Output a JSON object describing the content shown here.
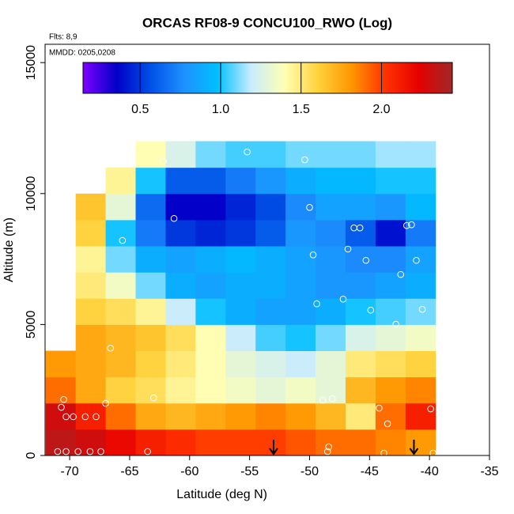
{
  "chart_data": {
    "type": "heatmap",
    "title": "ORCAS RF08-9 CONCU100_RWO (Log)",
    "subtitle": "Flts: 8,9",
    "annotation": "MMDD: 0205,0208",
    "x_label": "Latitude (deg N)",
    "y_label": "Altitude (m)",
    "xlim": [
      -72.05,
      -35
    ],
    "ylim": [
      0,
      15700
    ],
    "xticks": [
      -70,
      -65,
      -60,
      -55,
      -50,
      -45,
      -40,
      -35
    ],
    "yticks": [
      0,
      5000,
      10000,
      15000
    ],
    "x_edges": [
      -72,
      -69.5,
      -67,
      -64.5,
      -62,
      -59.5,
      -57,
      -54.5,
      -52,
      -49.5,
      -47,
      -44.5,
      -42,
      -39.5,
      -37
    ],
    "y_edges": [
      0,
      1000,
      2000,
      3000,
      4000,
      5000,
      6000,
      7000,
      8000,
      9000,
      10000,
      11000,
      12000
    ],
    "z": [
      [
        2.35,
        2.3,
        2.2,
        2.1,
        2.05,
        2.0,
        2.0,
        2.0,
        1.95,
        1.9,
        1.9,
        1.85,
        1.8,
        null
      ],
      [
        2.3,
        2.1,
        1.9,
        1.75,
        1.7,
        1.75,
        1.8,
        1.85,
        1.8,
        1.7,
        1.5,
        1.9,
        2.1,
        null
      ],
      [
        1.9,
        1.75,
        1.6,
        1.55,
        1.45,
        1.4,
        1.35,
        1.3,
        1.35,
        1.3,
        1.7,
        1.8,
        1.85,
        null
      ],
      [
        1.8,
        1.75,
        1.7,
        1.6,
        1.5,
        1.4,
        1.3,
        1.25,
        1.2,
        1.3,
        1.5,
        1.55,
        1.6,
        null
      ],
      [
        null,
        1.75,
        1.7,
        1.65,
        1.55,
        1.4,
        1.2,
        1.05,
        1.0,
        1.1,
        1.25,
        1.3,
        1.35,
        null
      ],
      [
        null,
        1.6,
        1.55,
        1.45,
        1.2,
        1.0,
        0.9,
        0.85,
        0.85,
        0.9,
        1.0,
        1.05,
        1.1,
        null
      ],
      [
        null,
        1.5,
        1.35,
        1.1,
        0.9,
        0.85,
        0.9,
        0.9,
        0.85,
        0.8,
        0.8,
        0.85,
        0.9,
        null
      ],
      [
        null,
        1.45,
        1.1,
        0.9,
        0.85,
        0.9,
        0.95,
        0.9,
        0.85,
        0.8,
        0.75,
        0.75,
        0.85,
        null
      ],
      [
        null,
        1.6,
        1.0,
        0.7,
        0.5,
        0.45,
        0.5,
        0.6,
        0.8,
        0.75,
        0.6,
        0.4,
        0.7,
        null
      ],
      [
        null,
        1.65,
        1.3,
        0.65,
        0.35,
        0.35,
        0.45,
        0.55,
        0.75,
        0.85,
        0.85,
        0.8,
        0.95,
        null
      ],
      [
        null,
        null,
        1.45,
        1.0,
        0.6,
        0.6,
        0.7,
        0.8,
        0.9,
        0.95,
        0.95,
        1.0,
        1.0,
        null
      ],
      [
        null,
        null,
        null,
        1.4,
        1.25,
        1.1,
        1.05,
        1.05,
        1.1,
        1.1,
        1.1,
        1.15,
        1.15,
        null
      ]
    ],
    "colorbar": {
      "lim": [
        0.145,
        2.44
      ],
      "ticks": [
        0.5,
        {
          "value": 1,
          "label": "1.0"
        },
        1.5,
        {
          "value": 2,
          "label": "2.0"
        }
      ],
      "colors": [
        "#7f00ff",
        "#0000c8",
        "#0050e6",
        "#1e90ff",
        "#00bfff",
        "#c8ecff",
        "#ffffb4",
        "#ffd23c",
        "#ff9600",
        "#ff3200",
        "#e60000",
        "#a02828"
      ]
    },
    "points": {
      "color": "#ffffff",
      "x": [
        -55.2,
        -62.2,
        -50.4,
        -50,
        -61.3,
        -65.6,
        -46.3,
        -45.8,
        -41.9,
        -41.5,
        -46.8,
        -49.7,
        -45.3,
        -41.1,
        -42.4,
        -38.2,
        -47.2,
        -49.4,
        -44.9,
        -40.6,
        -42.8,
        -70.2,
        -69.9,
        -66.6,
        -63,
        -70.5,
        -70.7,
        -48.9,
        -48.1,
        -67,
        -70.3,
        -69.7,
        -68.7,
        -67.8,
        -44.2,
        -39.9,
        -43.5,
        -48.4,
        -48.5,
        -43.8,
        -39.7,
        -63.5,
        -71,
        -70.3,
        -69.3,
        -68.3,
        -67.4
      ],
      "y": [
        11590,
        11230,
        11290,
        9470,
        9050,
        8210,
        8690,
        8690,
        8780,
        8810,
        7880,
        7660,
        7450,
        7450,
        6910,
        6730,
        5970,
        5790,
        5550,
        5580,
        5010,
        4130,
        4130,
        4100,
        2200,
        2140,
        1840,
        2110,
        2170,
        1990,
        1480,
        1480,
        1480,
        1480,
        1810,
        1780,
        1210,
        330,
        150,
        90,
        90,
        150,
        150,
        150,
        150,
        150,
        150
      ]
    },
    "markers_x": [
      -53,
      -41.3
    ]
  }
}
